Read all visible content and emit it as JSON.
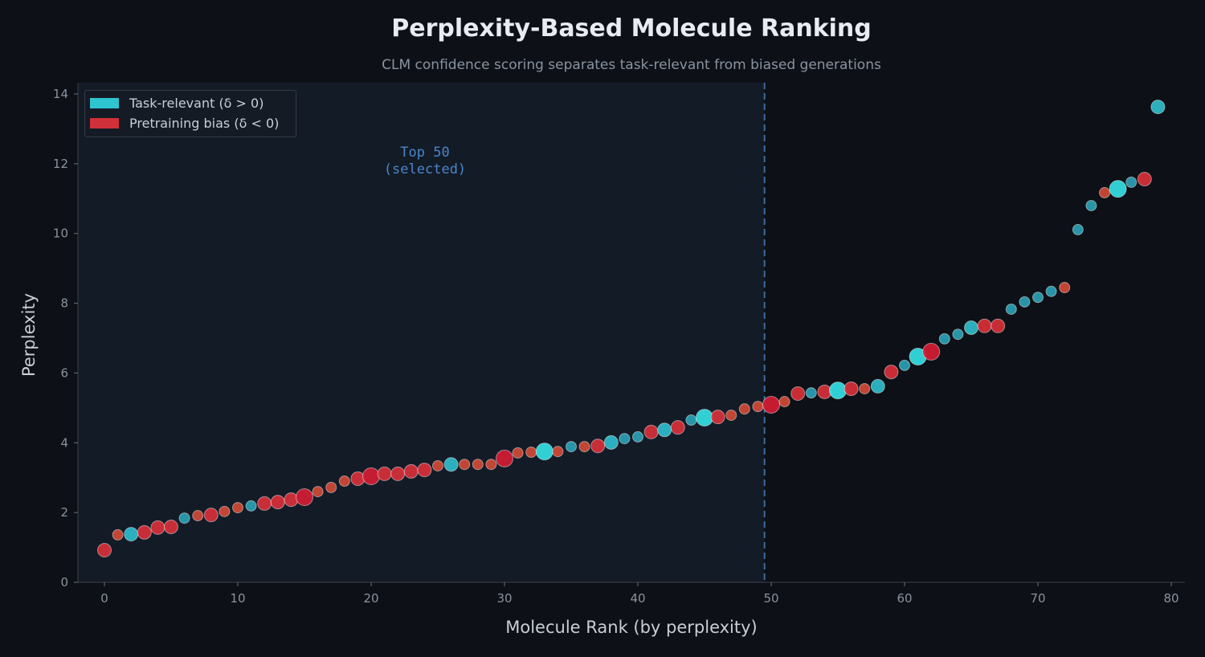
{
  "title": "Perplexity-Based Molecule Ranking",
  "subtitle": "CLM confidence scoring separates task-relevant from biased generations",
  "chart_data": {
    "type": "scatter",
    "title": "Perplexity-Based Molecule Ranking",
    "xlabel": "Molecule Rank (by perplexity)",
    "ylabel": "Perplexity",
    "xlim": [
      -1.5,
      81
    ],
    "ylim": [
      0,
      14.3
    ],
    "xticks": [
      0,
      10,
      20,
      30,
      40,
      50,
      60,
      70,
      80
    ],
    "yticks": [
      0,
      2,
      4,
      6,
      8,
      10,
      12,
      14
    ],
    "grid": false,
    "legend_position": "top-left",
    "colors": {
      "task_relevant": "#2ec4d0",
      "pretraining_bias": "#d0303a",
      "highlight": "#1e2a3c",
      "threshold": "#3e6a9e"
    },
    "legend": [
      "Task-relevant (δ > 0)",
      "Pretraining bias (δ < 0)"
    ],
    "annotation": {
      "text_line1": "Top 50",
      "text_line2": "(selected)",
      "threshold_x": 49.5
    },
    "points": [
      {
        "x": 0,
        "y": 0.92,
        "cls": "bias",
        "size": 2
      },
      {
        "x": 1,
        "y": 1.36,
        "cls": "bias",
        "size": 1
      },
      {
        "x": 2,
        "y": 1.38,
        "cls": "task",
        "size": 2
      },
      {
        "x": 3,
        "y": 1.43,
        "cls": "bias",
        "size": 2
      },
      {
        "x": 4,
        "y": 1.57,
        "cls": "bias",
        "size": 2
      },
      {
        "x": 5,
        "y": 1.59,
        "cls": "bias",
        "size": 2
      },
      {
        "x": 6,
        "y": 1.84,
        "cls": "task",
        "size": 1
      },
      {
        "x": 7,
        "y": 1.91,
        "cls": "bias",
        "size": 1
      },
      {
        "x": 8,
        "y": 1.93,
        "cls": "bias",
        "size": 2
      },
      {
        "x": 9,
        "y": 2.03,
        "cls": "bias",
        "size": 1
      },
      {
        "x": 10,
        "y": 2.14,
        "cls": "bias",
        "size": 1
      },
      {
        "x": 11,
        "y": 2.19,
        "cls": "task",
        "size": 1
      },
      {
        "x": 12,
        "y": 2.26,
        "cls": "bias",
        "size": 2
      },
      {
        "x": 13,
        "y": 2.3,
        "cls": "bias",
        "size": 2
      },
      {
        "x": 14,
        "y": 2.37,
        "cls": "bias",
        "size": 2
      },
      {
        "x": 15,
        "y": 2.44,
        "cls": "bias",
        "size": 3
      },
      {
        "x": 16,
        "y": 2.6,
        "cls": "bias",
        "size": 1
      },
      {
        "x": 17,
        "y": 2.72,
        "cls": "bias",
        "size": 1
      },
      {
        "x": 18,
        "y": 2.9,
        "cls": "bias",
        "size": 1
      },
      {
        "x": 19,
        "y": 2.97,
        "cls": "bias",
        "size": 2
      },
      {
        "x": 20,
        "y": 3.04,
        "cls": "bias",
        "size": 3
      },
      {
        "x": 21,
        "y": 3.11,
        "cls": "bias",
        "size": 2
      },
      {
        "x": 22,
        "y": 3.11,
        "cls": "bias",
        "size": 2
      },
      {
        "x": 23,
        "y": 3.18,
        "cls": "bias",
        "size": 2
      },
      {
        "x": 24,
        "y": 3.22,
        "cls": "bias",
        "size": 2
      },
      {
        "x": 25,
        "y": 3.34,
        "cls": "bias",
        "size": 1
      },
      {
        "x": 26,
        "y": 3.38,
        "cls": "task",
        "size": 2
      },
      {
        "x": 27,
        "y": 3.38,
        "cls": "bias",
        "size": 1
      },
      {
        "x": 28,
        "y": 3.38,
        "cls": "bias",
        "size": 1
      },
      {
        "x": 29,
        "y": 3.38,
        "cls": "bias",
        "size": 1
      },
      {
        "x": 30,
        "y": 3.55,
        "cls": "bias",
        "size": 3
      },
      {
        "x": 31,
        "y": 3.71,
        "cls": "bias",
        "size": 1
      },
      {
        "x": 32,
        "y": 3.73,
        "cls": "bias",
        "size": 1
      },
      {
        "x": 33,
        "y": 3.75,
        "cls": "task",
        "size": 3
      },
      {
        "x": 34,
        "y": 3.75,
        "cls": "bias",
        "size": 1
      },
      {
        "x": 35,
        "y": 3.89,
        "cls": "task",
        "size": 1
      },
      {
        "x": 36,
        "y": 3.89,
        "cls": "bias",
        "size": 1
      },
      {
        "x": 37,
        "y": 3.91,
        "cls": "bias",
        "size": 2
      },
      {
        "x": 38,
        "y": 4.01,
        "cls": "task",
        "size": 2
      },
      {
        "x": 39,
        "y": 4.12,
        "cls": "task",
        "size": 1
      },
      {
        "x": 40,
        "y": 4.17,
        "cls": "task",
        "size": 1
      },
      {
        "x": 41,
        "y": 4.31,
        "cls": "bias",
        "size": 2
      },
      {
        "x": 42,
        "y": 4.37,
        "cls": "task",
        "size": 2
      },
      {
        "x": 43,
        "y": 4.44,
        "cls": "bias",
        "size": 2
      },
      {
        "x": 44,
        "y": 4.65,
        "cls": "task",
        "size": 1
      },
      {
        "x": 45,
        "y": 4.72,
        "cls": "task",
        "size": 3
      },
      {
        "x": 46,
        "y": 4.74,
        "cls": "bias",
        "size": 2
      },
      {
        "x": 47,
        "y": 4.79,
        "cls": "bias",
        "size": 1
      },
      {
        "x": 48,
        "y": 4.97,
        "cls": "bias",
        "size": 1
      },
      {
        "x": 49,
        "y": 5.04,
        "cls": "bias",
        "size": 1
      },
      {
        "x": 50,
        "y": 5.09,
        "cls": "bias",
        "size": 3
      },
      {
        "x": 51,
        "y": 5.18,
        "cls": "bias",
        "size": 1
      },
      {
        "x": 52,
        "y": 5.41,
        "cls": "bias",
        "size": 2
      },
      {
        "x": 53,
        "y": 5.43,
        "cls": "task",
        "size": 1
      },
      {
        "x": 54,
        "y": 5.46,
        "cls": "bias",
        "size": 2
      },
      {
        "x": 55,
        "y": 5.5,
        "cls": "task",
        "size": 3
      },
      {
        "x": 56,
        "y": 5.55,
        "cls": "bias",
        "size": 2
      },
      {
        "x": 57,
        "y": 5.55,
        "cls": "bias",
        "size": 1
      },
      {
        "x": 58,
        "y": 5.62,
        "cls": "task",
        "size": 2
      },
      {
        "x": 59,
        "y": 6.03,
        "cls": "bias",
        "size": 2
      },
      {
        "x": 60,
        "y": 6.22,
        "cls": "task",
        "size": 1
      },
      {
        "x": 61,
        "y": 6.47,
        "cls": "task",
        "size": 3
      },
      {
        "x": 62,
        "y": 6.61,
        "cls": "bias",
        "size": 3
      },
      {
        "x": 63,
        "y": 6.98,
        "cls": "task",
        "size": 1
      },
      {
        "x": 64,
        "y": 7.11,
        "cls": "task",
        "size": 1
      },
      {
        "x": 65,
        "y": 7.3,
        "cls": "task",
        "size": 2
      },
      {
        "x": 66,
        "y": 7.35,
        "cls": "bias",
        "size": 2
      },
      {
        "x": 67,
        "y": 7.35,
        "cls": "bias",
        "size": 2
      },
      {
        "x": 68,
        "y": 7.83,
        "cls": "task",
        "size": 1
      },
      {
        "x": 69,
        "y": 8.04,
        "cls": "task",
        "size": 1
      },
      {
        "x": 70,
        "y": 8.17,
        "cls": "task",
        "size": 1
      },
      {
        "x": 71,
        "y": 8.34,
        "cls": "task",
        "size": 1
      },
      {
        "x": 72,
        "y": 8.45,
        "cls": "bias",
        "size": 1
      },
      {
        "x": 73,
        "y": 10.11,
        "cls": "task",
        "size": 1
      },
      {
        "x": 74,
        "y": 10.8,
        "cls": "task",
        "size": 1
      },
      {
        "x": 75,
        "y": 11.17,
        "cls": "bias",
        "size": 1
      },
      {
        "x": 76,
        "y": 11.28,
        "cls": "task",
        "size": 3
      },
      {
        "x": 77,
        "y": 11.47,
        "cls": "task",
        "size": 1
      },
      {
        "x": 78,
        "y": 11.56,
        "cls": "bias",
        "size": 2
      },
      {
        "x": 79,
        "y": 13.63,
        "cls": "task",
        "size": 2
      }
    ]
  }
}
